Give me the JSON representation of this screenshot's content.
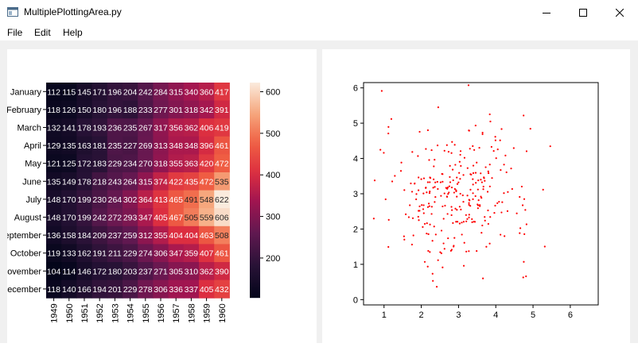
{
  "window": {
    "title": "MultiplePlottingArea.py"
  },
  "menu": {
    "items": [
      "File",
      "Edit",
      "Help"
    ]
  },
  "heatmap": {
    "months": [
      "January",
      "February",
      "March",
      "April",
      "May",
      "June",
      "July",
      "August",
      "September",
      "October",
      "November",
      "December"
    ],
    "years": [
      "1949",
      "1950",
      "1951",
      "1952",
      "1953",
      "1954",
      "1955",
      "1956",
      "1957",
      "1958",
      "1959",
      "1960"
    ],
    "values": [
      [
        112,
        115,
        145,
        171,
        196,
        204,
        242,
        284,
        315,
        340,
        360,
        417
      ],
      [
        118,
        126,
        150,
        180,
        196,
        188,
        233,
        277,
        301,
        318,
        342,
        391
      ],
      [
        132,
        141,
        178,
        193,
        236,
        235,
        267,
        317,
        356,
        362,
        406,
        419
      ],
      [
        129,
        135,
        163,
        181,
        235,
        227,
        269,
        313,
        348,
        348,
        396,
        461
      ],
      [
        121,
        125,
        172,
        183,
        229,
        234,
        270,
        318,
        355,
        363,
        420,
        472
      ],
      [
        135,
        149,
        178,
        218,
        243,
        264,
        315,
        374,
        422,
        435,
        472,
        535
      ],
      [
        148,
        170,
        199,
        230,
        264,
        302,
        364,
        413,
        465,
        491,
        548,
        622
      ],
      [
        148,
        170,
        199,
        242,
        272,
        293,
        347,
        405,
        467,
        505,
        559,
        606
      ],
      [
        136,
        158,
        184,
        209,
        237,
        259,
        312,
        355,
        404,
        404,
        463,
        508
      ],
      [
        119,
        133,
        162,
        191,
        211,
        229,
        274,
        306,
        347,
        359,
        407,
        461
      ],
      [
        104,
        114,
        146,
        172,
        180,
        203,
        237,
        271,
        305,
        310,
        362,
        390
      ],
      [
        118,
        140,
        166,
        194,
        201,
        229,
        278,
        306,
        336,
        337,
        405,
        432
      ]
    ],
    "colorbar_ticks": [
      "200",
      "300",
      "400",
      "500",
      "600"
    ],
    "vmin": 104,
    "vmax": 622
  },
  "scatter": {
    "xticks": [
      "1",
      "2",
      "3",
      "4",
      "5",
      "6"
    ],
    "yticks": [
      "0",
      "1",
      "2",
      "3",
      "4",
      "5",
      "6"
    ],
    "xlim": [
      0.45,
      6.75
    ],
    "ylim": [
      -0.15,
      6.15
    ],
    "color": "#ff0000"
  }
}
